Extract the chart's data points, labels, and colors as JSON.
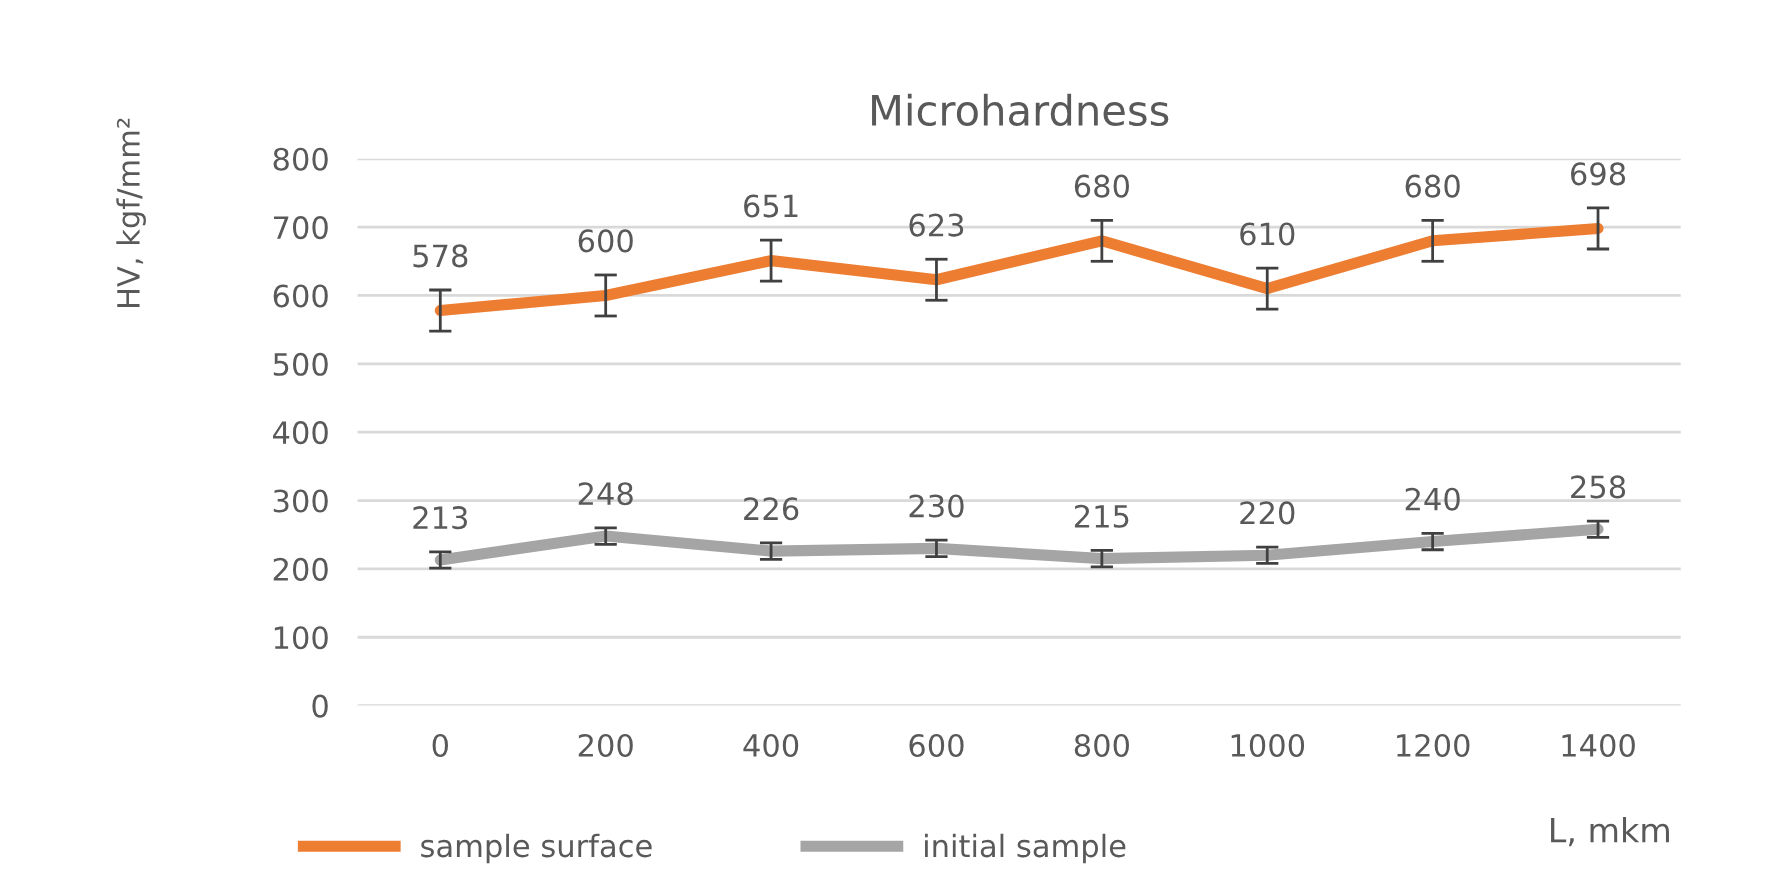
{
  "chart_data": {
    "type": "line",
    "title": "Microhardness",
    "xlabel": "L, mkm",
    "ylabel": "HV, kgf/mm²",
    "categories": [
      "0",
      "200",
      "400",
      "600",
      "800",
      "1000",
      "1200",
      "1400"
    ],
    "series": [
      {
        "name": "sample surface",
        "color": "#ed7d31",
        "values": [
          578,
          600,
          651,
          623,
          680,
          610,
          680,
          698
        ],
        "errors": [
          30,
          30,
          30,
          30,
          30,
          30,
          30,
          30
        ]
      },
      {
        "name": "initial sample",
        "color": "#a5a5a5",
        "values": [
          213,
          248,
          226,
          230,
          215,
          220,
          240,
          258
        ],
        "errors": [
          12,
          12,
          12,
          12,
          12,
          12,
          12,
          12
        ]
      }
    ],
    "ylim": [
      0,
      800
    ],
    "yticks": [
      0,
      100,
      200,
      300,
      400,
      500,
      600,
      700,
      800
    ],
    "grid": "y",
    "legend": "bottom",
    "data_labels": true,
    "marker": "none",
    "line_style": "solid"
  }
}
